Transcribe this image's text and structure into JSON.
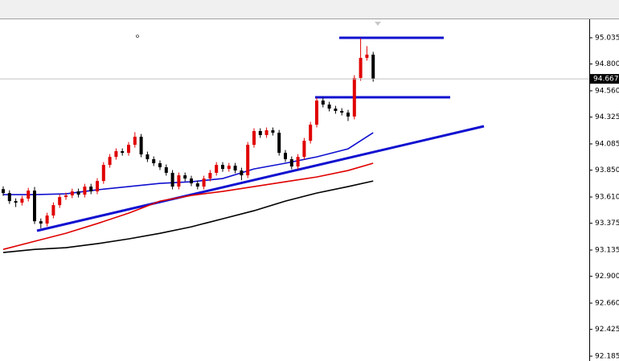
{
  "chart_data": {
    "type": "candlestick",
    "current_price": 94.667,
    "ylim": [
      92.142,
      95.193
    ],
    "yticks": [
      95.035,
      {
        "value": 94.8,
        "label": "94.800"
      },
      {
        "value": 94.56,
        "label": "94.560"
      },
      94.325,
      94.085,
      {
        "value": 93.85,
        "label": "93.850"
      },
      {
        "value": 93.61,
        "label": "93.610"
      },
      93.375,
      93.135,
      {
        "value": 92.9,
        "label": "92.900"
      },
      {
        "value": 92.66,
        "label": "92.660"
      },
      92.425,
      92.185
    ],
    "up_color": "#e00000",
    "down_color": "#000000",
    "open": [
      93.68,
      93.645,
      93.573,
      93.559,
      93.595,
      93.667,
      93.393,
      93.372,
      93.444,
      93.537,
      93.609,
      93.624,
      93.66,
      93.631,
      93.703,
      93.66,
      93.753,
      93.897,
      93.969,
      94.02,
      94.005,
      94.077,
      94.149,
      93.991,
      93.948,
      93.912,
      93.876,
      93.826,
      93.703,
      93.804,
      93.775,
      93.732,
      93.703,
      93.775,
      93.826,
      93.897,
      93.861,
      93.89,
      93.847,
      93.804,
      94.077,
      94.2,
      94.164,
      94.207,
      94.185,
      94.005,
      93.948,
      93.883,
      93.969,
      94.113,
      94.257,
      94.473,
      94.437,
      94.401,
      94.38,
      94.365,
      94.33,
      94.675,
      94.855,
      94.884
    ],
    "high": [
      93.705,
      93.67,
      93.598,
      93.62,
      93.692,
      93.7,
      93.418,
      93.469,
      93.562,
      93.634,
      93.649,
      93.685,
      93.685,
      93.728,
      93.728,
      93.778,
      93.922,
      93.994,
      94.045,
      94.045,
      94.102,
      94.19,
      94.174,
      94.016,
      93.973,
      93.937,
      93.901,
      93.851,
      93.829,
      93.829,
      93.8,
      93.757,
      93.8,
      93.851,
      93.922,
      93.922,
      93.915,
      93.915,
      93.872,
      94.102,
      94.225,
      94.225,
      94.232,
      94.232,
      94.21,
      94.03,
      93.973,
      93.994,
      94.138,
      94.282,
      94.498,
      94.498,
      94.462,
      94.426,
      94.405,
      94.39,
      94.7,
      95.03,
      94.96,
      94.909
    ],
    "low": [
      93.62,
      93.548,
      93.52,
      93.534,
      93.57,
      93.368,
      93.33,
      93.347,
      93.419,
      93.512,
      93.584,
      93.599,
      93.606,
      93.606,
      93.635,
      93.635,
      93.728,
      93.872,
      93.944,
      93.98,
      93.98,
      94.052,
      93.966,
      93.923,
      93.887,
      93.851,
      93.801,
      93.678,
      93.678,
      93.75,
      93.707,
      93.678,
      93.678,
      93.75,
      93.801,
      93.836,
      93.836,
      93.822,
      93.76,
      93.779,
      94.052,
      94.139,
      94.139,
      94.16,
      93.98,
      93.923,
      93.858,
      93.858,
      93.944,
      94.088,
      94.232,
      94.412,
      94.376,
      94.355,
      94.34,
      94.29,
      94.305,
      94.65,
      94.83,
      94.642
    ],
    "close": [
      93.645,
      93.573,
      93.559,
      93.595,
      93.667,
      93.393,
      93.372,
      93.444,
      93.537,
      93.609,
      93.624,
      93.66,
      93.631,
      93.703,
      93.66,
      93.753,
      93.897,
      93.969,
      94.02,
      94.005,
      94.077,
      94.149,
      93.991,
      93.948,
      93.912,
      93.876,
      93.826,
      93.703,
      93.804,
      93.775,
      93.732,
      93.703,
      93.775,
      93.826,
      93.897,
      93.861,
      93.89,
      93.847,
      93.804,
      94.077,
      94.2,
      94.164,
      94.207,
      94.185,
      94.005,
      93.948,
      93.883,
      93.969,
      94.113,
      94.257,
      94.473,
      94.437,
      94.401,
      94.38,
      94.365,
      94.33,
      94.675,
      94.855,
      94.884,
      94.667
    ],
    "overlays": [
      {
        "color": "#1010d0",
        "x": [
          0,
          5,
          10,
          15,
          20,
          25,
          30,
          35,
          40,
          45,
          50,
          55,
          59
        ],
        "values": [
          93.631,
          93.631,
          93.638,
          93.674,
          93.703,
          93.732,
          93.746,
          93.775,
          93.861,
          93.912,
          93.969,
          94.041,
          94.185
        ]
      },
      {
        "color": "#e00000",
        "x": [
          0,
          5,
          10,
          15,
          20,
          25,
          30,
          35,
          40,
          45,
          50,
          55,
          59
        ],
        "values": [
          93.141,
          93.213,
          93.285,
          93.372,
          93.465,
          93.573,
          93.624,
          93.66,
          93.703,
          93.746,
          93.789,
          93.847,
          93.912
        ]
      },
      {
        "color": "#000000",
        "x": [
          0,
          5,
          10,
          15,
          20,
          25,
          30,
          35,
          40,
          45,
          50,
          55,
          59
        ],
        "values": [
          93.113,
          93.141,
          93.156,
          93.192,
          93.235,
          93.285,
          93.343,
          93.415,
          93.487,
          93.573,
          93.645,
          93.703,
          93.753
        ]
      }
    ]
  }
}
